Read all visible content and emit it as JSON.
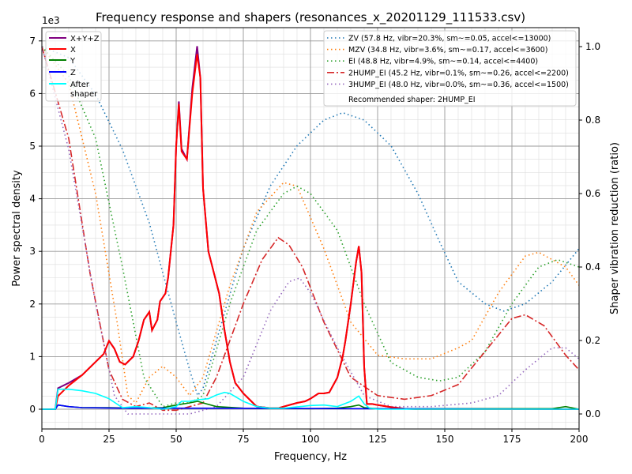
{
  "chart_data": {
    "type": "line",
    "title": "Frequency response and shapers (resonances_x_20201129_111533.csv)",
    "xlabel": "Frequency, Hz",
    "ylabel": "Power spectral density",
    "ylabel_right": "Shaper vibration reduction (ratio)",
    "y_offset_label": "1e3",
    "xlim": [
      0,
      200
    ],
    "ylim": [
      -350,
      7250
    ],
    "ylim_right": [
      -0.025,
      1.04
    ],
    "xticks": [
      0,
      25,
      50,
      75,
      100,
      125,
      150,
      175,
      200
    ],
    "yticks": [
      0,
      1,
      2,
      3,
      4,
      5,
      6,
      7
    ],
    "yticks_right": [
      0.0,
      0.2,
      0.4,
      0.6,
      0.8,
      1.0
    ],
    "grid": true,
    "legend_left": "top-left",
    "legend_right": "top-right",
    "psd_series": [
      {
        "name": "X+Y+Z",
        "color": "#800080",
        "x": [
          0,
          5,
          6,
          10,
          15,
          20,
          23,
          25,
          27,
          29,
          31,
          34,
          36,
          38,
          40,
          41,
          43,
          44,
          46,
          47,
          49,
          50,
          51,
          52,
          54,
          56,
          57.8,
          59,
          60,
          62,
          64,
          66,
          68,
          70,
          72,
          75,
          78,
          80,
          85,
          88,
          90,
          95,
          98,
          100,
          103,
          105,
          107,
          110,
          112,
          113,
          115,
          117,
          118,
          119,
          120,
          121,
          123,
          125,
          130,
          135,
          140,
          200
        ],
        "y": [
          0,
          0,
          400,
          500,
          650,
          900,
          1050,
          1300,
          1150,
          900,
          850,
          1000,
          1300,
          1700,
          1850,
          1500,
          1700,
          2050,
          2200,
          2500,
          3500,
          5000,
          5850,
          4950,
          4750,
          6100,
          6900,
          6300,
          4200,
          3000,
          2600,
          2200,
          1500,
          900,
          500,
          300,
          150,
          50,
          20,
          20,
          50,
          120,
          150,
          200,
          300,
          300,
          320,
          600,
          1000,
          1300,
          2000,
          2800,
          3100,
          2600,
          800,
          100,
          100,
          80,
          40,
          10,
          0,
          0
        ]
      },
      {
        "name": "X",
        "color": "#ff0000",
        "x": [
          0,
          5,
          6,
          10,
          15,
          20,
          23,
          25,
          27,
          29,
          31,
          34,
          36,
          38,
          40,
          41,
          43,
          44,
          46,
          47,
          49,
          50,
          51,
          52,
          54,
          56,
          57.8,
          59,
          60,
          62,
          64,
          66,
          68,
          70,
          72,
          75,
          78,
          80,
          85,
          88,
          90,
          95,
          98,
          100,
          103,
          105,
          107,
          110,
          112,
          113,
          115,
          117,
          118,
          119,
          120,
          121,
          123,
          125,
          130,
          135,
          140,
          200
        ],
        "y": [
          0,
          0,
          250,
          450,
          650,
          900,
          1050,
          1300,
          1150,
          900,
          850,
          1000,
          1300,
          1700,
          1850,
          1500,
          1700,
          2050,
          2200,
          2500,
          3500,
          5000,
          5800,
          4900,
          4750,
          6000,
          6750,
          6300,
          4200,
          3000,
          2600,
          2200,
          1500,
          900,
          500,
          300,
          150,
          50,
          20,
          20,
          50,
          120,
          150,
          200,
          300,
          300,
          320,
          600,
          1000,
          1300,
          2000,
          2800,
          3100,
          2600,
          800,
          100,
          100,
          80,
          40,
          10,
          0,
          0
        ]
      },
      {
        "name": "Y",
        "color": "#008000",
        "x": [
          0,
          5,
          6,
          10,
          15,
          25,
          35,
          45,
          50,
          55,
          58,
          60,
          65,
          75,
          100,
          110,
          115,
          118,
          120,
          125,
          190,
          195,
          200
        ],
        "y": [
          0,
          0,
          80,
          50,
          30,
          30,
          20,
          30,
          80,
          120,
          150,
          120,
          50,
          20,
          10,
          20,
          50,
          80,
          30,
          10,
          10,
          50,
          0
        ]
      },
      {
        "name": "Z",
        "color": "#0000ff",
        "x": [
          0,
          5,
          6,
          10,
          15,
          30,
          60,
          120,
          200
        ],
        "y": [
          0,
          0,
          80,
          50,
          30,
          20,
          20,
          10,
          0
        ]
      },
      {
        "name": "After\nshaper",
        "color": "#00ffff",
        "x": [
          0,
          5,
          6,
          10,
          15,
          20,
          25,
          30,
          35,
          40,
          45,
          50,
          52,
          55,
          58,
          62,
          65,
          68,
          70,
          75,
          80,
          85,
          90,
          100,
          105,
          110,
          115,
          118,
          120,
          122,
          125,
          200
        ],
        "y": [
          0,
          0,
          380,
          380,
          350,
          300,
          200,
          30,
          50,
          30,
          0,
          50,
          150,
          150,
          180,
          200,
          270,
          320,
          300,
          150,
          50,
          20,
          20,
          70,
          80,
          50,
          150,
          250,
          100,
          20,
          0,
          0
        ]
      }
    ],
    "shapers": [
      {
        "name": "ZV (57.8 Hz, vibr=20.3%, sm~=0.05, accel<=13000)",
        "color": "#1f77b4",
        "style": "dotted",
        "x": [
          0,
          10,
          20,
          30,
          40,
          50,
          55,
          58,
          60,
          65,
          75,
          85,
          95,
          105,
          112,
          120,
          130,
          140,
          148,
          155,
          165,
          172,
          180,
          190,
          200
        ],
        "y": [
          1.0,
          0.97,
          0.87,
          0.72,
          0.52,
          0.25,
          0.12,
          0.05,
          0.07,
          0.2,
          0.45,
          0.62,
          0.73,
          0.8,
          0.82,
          0.8,
          0.73,
          0.6,
          0.47,
          0.36,
          0.3,
          0.28,
          0.3,
          0.36,
          0.45
        ]
      },
      {
        "name": "MZV (34.8 Hz, vibr=3.6%, sm~=0.17, accel<=3600)",
        "color": "#ff7f0e",
        "style": "dotted",
        "x": [
          0,
          10,
          20,
          28,
          32,
          35,
          40,
          45,
          50,
          55,
          60,
          70,
          80,
          90,
          95,
          105,
          115,
          125,
          135,
          145,
          155,
          160,
          170,
          180,
          185,
          195,
          200
        ],
        "y": [
          1.0,
          0.9,
          0.6,
          0.25,
          0.05,
          0.03,
          0.1,
          0.13,
          0.1,
          0.05,
          0.1,
          0.35,
          0.55,
          0.63,
          0.62,
          0.45,
          0.25,
          0.16,
          0.15,
          0.15,
          0.18,
          0.2,
          0.33,
          0.43,
          0.44,
          0.4,
          0.35
        ]
      },
      {
        "name": "EI (48.8 Hz, vibr=4.9%, sm~=0.14, accel<=4400)",
        "color": "#2ca02c",
        "style": "dotted",
        "x": [
          0,
          10,
          20,
          30,
          38,
          45,
          50,
          55,
          60,
          70,
          80,
          90,
          95,
          100,
          110,
          120,
          130,
          140,
          148,
          155,
          165,
          175,
          185,
          192,
          200
        ],
        "y": [
          1.0,
          0.92,
          0.75,
          0.4,
          0.1,
          0.02,
          0.03,
          0.03,
          0.05,
          0.3,
          0.5,
          0.6,
          0.62,
          0.6,
          0.5,
          0.3,
          0.14,
          0.1,
          0.09,
          0.1,
          0.17,
          0.3,
          0.4,
          0.42,
          0.4
        ]
      },
      {
        "name": "2HUMP_EI (45.2 Hz, vibr=0.1%, sm~=0.26, accel<=2200)",
        "color": "#d62728",
        "style": "dashdot",
        "x": [
          0,
          10,
          18,
          25,
          30,
          35,
          40,
          45,
          50,
          60,
          65,
          75,
          82,
          88,
          92,
          97,
          105,
          115,
          125,
          135,
          145,
          155,
          165,
          175,
          180,
          187,
          195,
          200
        ],
        "y": [
          1.0,
          0.75,
          0.38,
          0.12,
          0.04,
          0.02,
          0.03,
          0.01,
          0.01,
          0.03,
          0.1,
          0.3,
          0.42,
          0.48,
          0.46,
          0.4,
          0.25,
          0.1,
          0.05,
          0.04,
          0.05,
          0.08,
          0.17,
          0.26,
          0.27,
          0.24,
          0.16,
          0.12
        ]
      },
      {
        "name": "3HUMP_EI (48.0 Hz, vibr=0.0%, sm~=0.36, accel<=1500)",
        "color": "#9467bd",
        "style": "dotted",
        "x": [
          0,
          10,
          20,
          27,
          32,
          40,
          55,
          65,
          75,
          85,
          92,
          96,
          100,
          110,
          120,
          130,
          145,
          160,
          170,
          180,
          190,
          195,
          200
        ],
        "y": [
          1.0,
          0.72,
          0.3,
          0.05,
          0.0,
          0.0,
          0.0,
          0.02,
          0.1,
          0.28,
          0.36,
          0.37,
          0.33,
          0.18,
          0.05,
          0.02,
          0.02,
          0.03,
          0.05,
          0.12,
          0.18,
          0.18,
          0.15
        ]
      }
    ],
    "recommended": "Recommended shaper: 2HUMP_EI"
  }
}
